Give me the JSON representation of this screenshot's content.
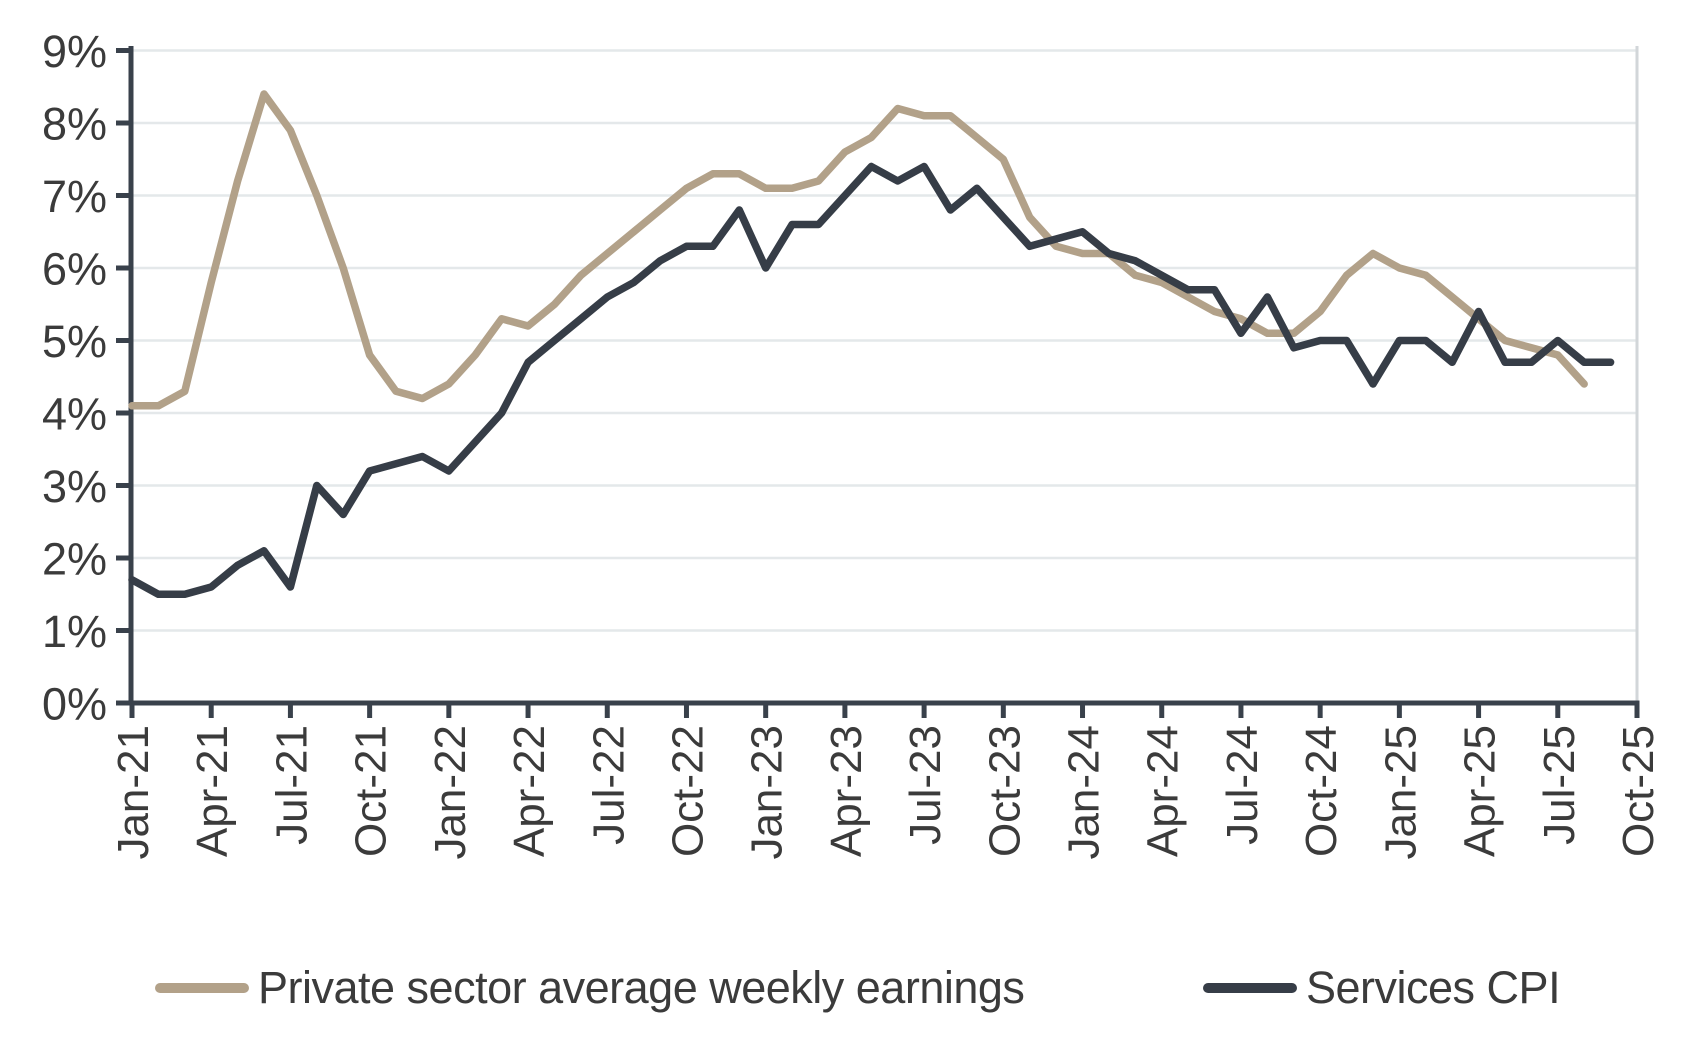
{
  "chart_data": {
    "type": "line",
    "title": "",
    "xlabel": "",
    "ylabel": "",
    "ylim": [
      0,
      9
    ],
    "y_tick_labels": [
      "0%",
      "1%",
      "2%",
      "3%",
      "4%",
      "5%",
      "6%",
      "7%",
      "8%",
      "9%"
    ],
    "x_tick_labels": [
      "Jan-21",
      "Apr-21",
      "Jul-21",
      "Oct-21",
      "Jan-22",
      "Apr-22",
      "Jul-22",
      "Oct-22",
      "Jan-23",
      "Apr-23",
      "Jul-23",
      "Oct-23",
      "Jan-24",
      "Apr-24",
      "Jul-24",
      "Oct-24",
      "Jan-25",
      "Apr-25",
      "Jul-25",
      "Oct-25"
    ],
    "x_tick_months": [
      0,
      3,
      6,
      9,
      12,
      15,
      18,
      21,
      24,
      27,
      30,
      33,
      36,
      39,
      42,
      45,
      48,
      51,
      54,
      57
    ],
    "months": [
      "Jan-21",
      "Feb-21",
      "Mar-21",
      "Apr-21",
      "May-21",
      "Jun-21",
      "Jul-21",
      "Aug-21",
      "Sep-21",
      "Oct-21",
      "Nov-21",
      "Dec-21",
      "Jan-22",
      "Feb-22",
      "Mar-22",
      "Apr-22",
      "May-22",
      "Jun-22",
      "Jul-22",
      "Aug-22",
      "Sep-22",
      "Oct-22",
      "Nov-22",
      "Dec-22",
      "Jan-23",
      "Feb-23",
      "Mar-23",
      "Apr-23",
      "May-23",
      "Jun-23",
      "Jul-23",
      "Aug-23",
      "Sep-23",
      "Oct-23",
      "Nov-23",
      "Dec-23",
      "Jan-24",
      "Feb-24",
      "Mar-24",
      "Apr-24",
      "May-24",
      "Jun-24",
      "Jul-24",
      "Aug-24",
      "Sep-24",
      "Oct-24",
      "Nov-24",
      "Dec-24",
      "Jan-25",
      "Feb-25",
      "Mar-25",
      "Apr-25",
      "May-25",
      "Jun-25",
      "Jul-25",
      "Aug-25",
      "Sep-25"
    ],
    "grid": true,
    "legend_position": "bottom",
    "series": [
      {
        "name": "Private sector average weekly earnings",
        "color": "#b2a189",
        "values": [
          4.1,
          4.1,
          4.3,
          5.8,
          7.2,
          8.4,
          7.9,
          7.0,
          6.0,
          4.8,
          4.3,
          4.2,
          4.4,
          4.8,
          5.3,
          5.2,
          5.5,
          5.9,
          6.2,
          6.5,
          6.8,
          7.1,
          7.3,
          7.3,
          7.1,
          7.1,
          7.2,
          7.6,
          7.8,
          8.2,
          8.1,
          8.1,
          7.8,
          7.5,
          6.7,
          6.3,
          6.2,
          6.2,
          5.9,
          5.8,
          5.6,
          5.4,
          5.3,
          5.1,
          5.1,
          5.4,
          5.9,
          6.2,
          6.0,
          5.9,
          5.6,
          5.3,
          5.0,
          4.9,
          4.8,
          4.4,
          null
        ]
      },
      {
        "name": "Services CPI",
        "color": "#363d47",
        "values": [
          1.7,
          1.5,
          1.5,
          1.6,
          1.9,
          2.1,
          1.6,
          3.0,
          2.6,
          3.2,
          3.3,
          3.4,
          3.2,
          3.6,
          4.0,
          4.7,
          5.0,
          5.3,
          5.6,
          5.8,
          6.1,
          6.3,
          6.3,
          6.8,
          6.0,
          6.6,
          6.6,
          7.0,
          7.4,
          7.2,
          7.4,
          6.8,
          7.1,
          6.7,
          6.3,
          6.4,
          6.5,
          6.2,
          6.1,
          5.9,
          5.7,
          5.7,
          5.1,
          5.6,
          4.9,
          5.0,
          5.0,
          4.4,
          5.0,
          5.0,
          4.7,
          5.4,
          4.7,
          4.7,
          5.0,
          4.7,
          4.7
        ]
      }
    ],
    "colors": {
      "gridline": "#e4e8ea",
      "plot_right_border": "#d2d6d9",
      "axis": "#39414b",
      "tick_label": "#3b3b3b",
      "legend_text": "#3b3b3b",
      "background": "#ffffff"
    }
  },
  "legend": {
    "earnings_label": "Private sector average weekly earnings",
    "cpi_label": "Services CPI"
  }
}
